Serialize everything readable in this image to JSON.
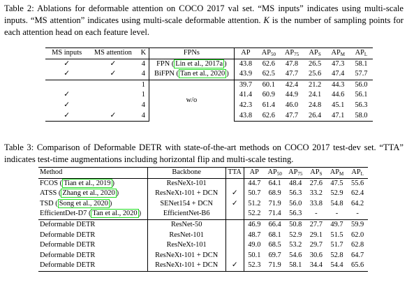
{
  "table2": {
    "label": "Table 2:",
    "caption": "Ablations for deformable attention on COCO 2017 val set. “MS inputs” indicates using multi-scale inputs. “MS attention” indicates using multi-scale deformable attention.",
    "caption_k_var": "K",
    "caption_tail": "is the number of sampling points for each attention head on each feature level.",
    "headers": [
      "MS inputs",
      "MS attention",
      "K",
      "FPNs",
      "AP",
      "AP",
      "AP",
      "AP",
      "AP",
      "AP"
    ],
    "ap_subscripts": [
      "",
      "50",
      "75",
      "S",
      "M",
      "L"
    ],
    "rows": [
      {
        "ms_inputs": "✓",
        "ms_attention": "✓",
        "k": "4",
        "fpn_name": "FPN",
        "fpn_ref_open": "(",
        "fpn_cite": "Lin et al., 2017a",
        "fpn_ref_close": ")",
        "values": [
          "43.8",
          "62.6",
          "47.8",
          "26.5",
          "47.3",
          "58.1"
        ]
      },
      {
        "ms_inputs": "✓",
        "ms_attention": "✓",
        "k": "4",
        "fpn_name": "BiFPN",
        "fpn_ref_open": "(",
        "fpn_cite": "Tan et al., 2020",
        "fpn_ref_close": ")",
        "values": [
          "43.9",
          "62.5",
          "47.7",
          "25.6",
          "47.4",
          "57.7"
        ]
      },
      {
        "ms_inputs": "",
        "ms_attention": "",
        "k": "1",
        "values": [
          "39.7",
          "60.1",
          "42.4",
          "21.2",
          "44.3",
          "56.0"
        ]
      },
      {
        "ms_inputs": "✓",
        "ms_attention": "",
        "k": "1",
        "values": [
          "41.4",
          "60.9",
          "44.9",
          "24.1",
          "44.6",
          "56.1"
        ]
      },
      {
        "ms_inputs": "✓",
        "ms_attention": "",
        "k": "4",
        "values": [
          "42.3",
          "61.4",
          "46.0",
          "24.8",
          "45.1",
          "56.3"
        ]
      },
      {
        "ms_inputs": "✓",
        "ms_attention": "✓",
        "k": "4",
        "values": [
          "43.8",
          "62.6",
          "47.7",
          "26.4",
          "47.1",
          "58.0"
        ]
      }
    ],
    "fpn_group_label": "w/o"
  },
  "table3": {
    "label": "Table 3:",
    "caption": "Comparison of Deformable DETR with state-of-the-art methods on COCO 2017 test-dev set. “TTA” indicates test-time augmentations including horizontal flip and multi-scale testing.",
    "headers": [
      "Method",
      "Backbone",
      "TTA",
      "AP",
      "AP",
      "AP",
      "AP",
      "AP",
      "AP"
    ],
    "ap_subscripts": [
      "",
      "50",
      "75",
      "S",
      "M",
      "L"
    ],
    "rows_sota": [
      {
        "method": "FCOS",
        "ref_open": "(",
        "cite": "Tian et al., 2019",
        "ref_close": ")",
        "backbone": "ResNeXt-101",
        "tta": "",
        "values": [
          "44.7",
          "64.1",
          "48.4",
          "27.6",
          "47.5",
          "55.6"
        ]
      },
      {
        "method": "ATSS",
        "ref_open": "(",
        "cite": "Zhang et al., 2020",
        "ref_close": ")",
        "backbone": "ResNeXt-101 + DCN",
        "tta": "✓",
        "values": [
          "50.7",
          "68.9",
          "56.3",
          "33.2",
          "52.9",
          "62.4"
        ]
      },
      {
        "method": "TSD",
        "ref_open": "(",
        "cite": "Song et al., 2020",
        "ref_close": ")",
        "backbone": "SENet154 + DCN",
        "tta": "✓",
        "values": [
          "51.2",
          "71.9",
          "56.0",
          "33.8",
          "54.8",
          "64.2"
        ]
      },
      {
        "method": "EfficientDet-D7",
        "ref_open": "(",
        "cite": "Tan et al., 2020",
        "ref_close": ")",
        "backbone": "EfficientNet-B6",
        "tta": "",
        "values": [
          "52.2",
          "71.4",
          "56.3",
          "-",
          "-",
          "-"
        ]
      }
    ],
    "rows_ours": [
      {
        "method": "Deformable DETR",
        "backbone": "ResNet-50",
        "tta": "",
        "values": [
          "46.9",
          "66.4",
          "50.8",
          "27.7",
          "49.7",
          "59.9"
        ]
      },
      {
        "method": "Deformable DETR",
        "backbone": "ResNet-101",
        "tta": "",
        "values": [
          "48.7",
          "68.1",
          "52.9",
          "29.1",
          "51.5",
          "62.0"
        ]
      },
      {
        "method": "Deformable DETR",
        "backbone": "ResNeXt-101",
        "tta": "",
        "values": [
          "49.0",
          "68.5",
          "53.2",
          "29.7",
          "51.7",
          "62.8"
        ]
      },
      {
        "method": "Deformable DETR",
        "backbone": "ResNeXt-101 + DCN",
        "tta": "",
        "values": [
          "50.1",
          "69.7",
          "54.6",
          "30.6",
          "52.8",
          "64.7"
        ]
      },
      {
        "method": "Deformable DETR",
        "backbone": "ResNeXt-101 + DCN",
        "tta": "✓",
        "values": [
          "52.3",
          "71.9",
          "58.1",
          "34.4",
          "54.4",
          "65.6"
        ]
      }
    ]
  },
  "colors": {
    "citation_box": "#22dd22",
    "text": "#000000"
  }
}
